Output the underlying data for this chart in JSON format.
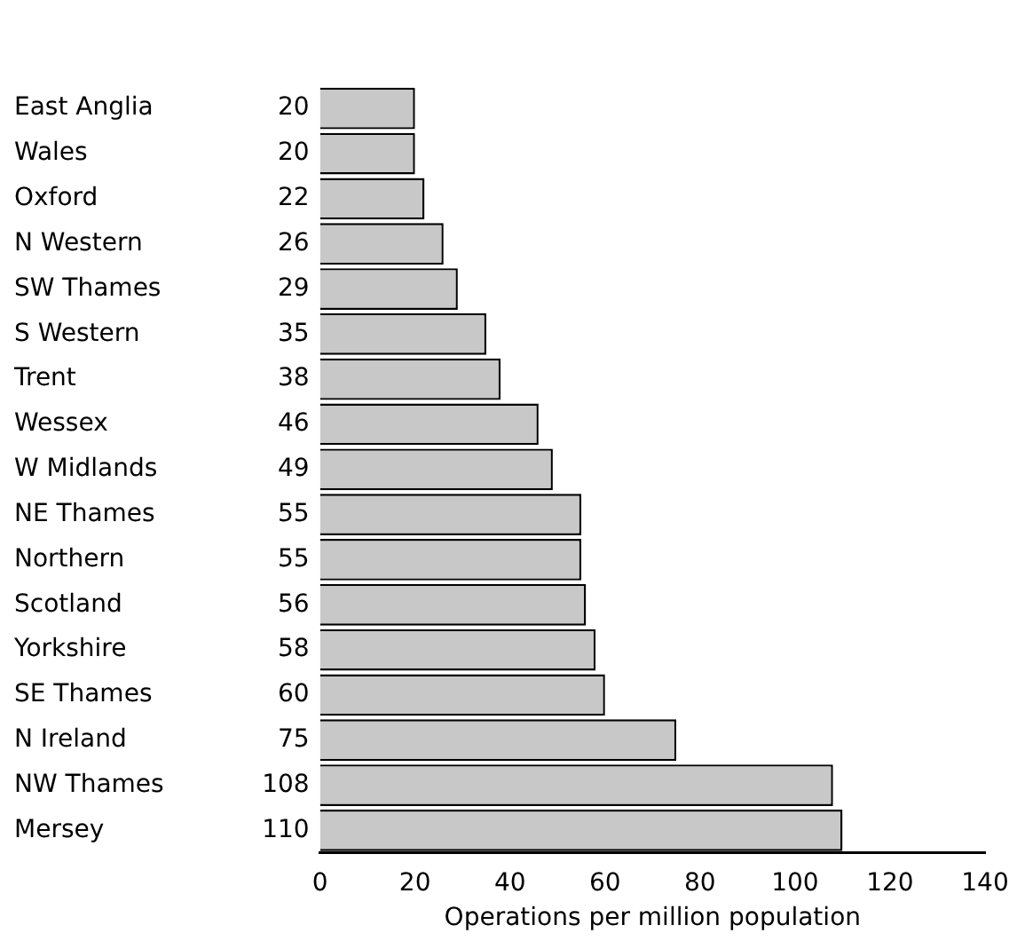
{
  "chart_data": {
    "type": "bar",
    "orientation": "horizontal",
    "xlabel": "Operations per million population",
    "categories": [
      "East Anglia",
      "Wales",
      "Oxford",
      "N Western",
      "SW Thames",
      "S Western",
      "Trent",
      "Wessex",
      "W Midlands",
      "NE Thames",
      "Northern",
      "Scotland",
      "Yorkshire",
      "SE Thames",
      "N Ireland",
      "NW Thames",
      "Mersey"
    ],
    "values": [
      20,
      20,
      22,
      26,
      29,
      35,
      38,
      46,
      49,
      55,
      55,
      56,
      58,
      60,
      75,
      108,
      110
    ],
    "color": "#c8c8c8",
    "xlim": [
      0,
      140
    ],
    "xticks": [
      0,
      20,
      40,
      60,
      80,
      100,
      120,
      140
    ],
    "data_labels": true,
    "grid": false,
    "legend": false
  }
}
